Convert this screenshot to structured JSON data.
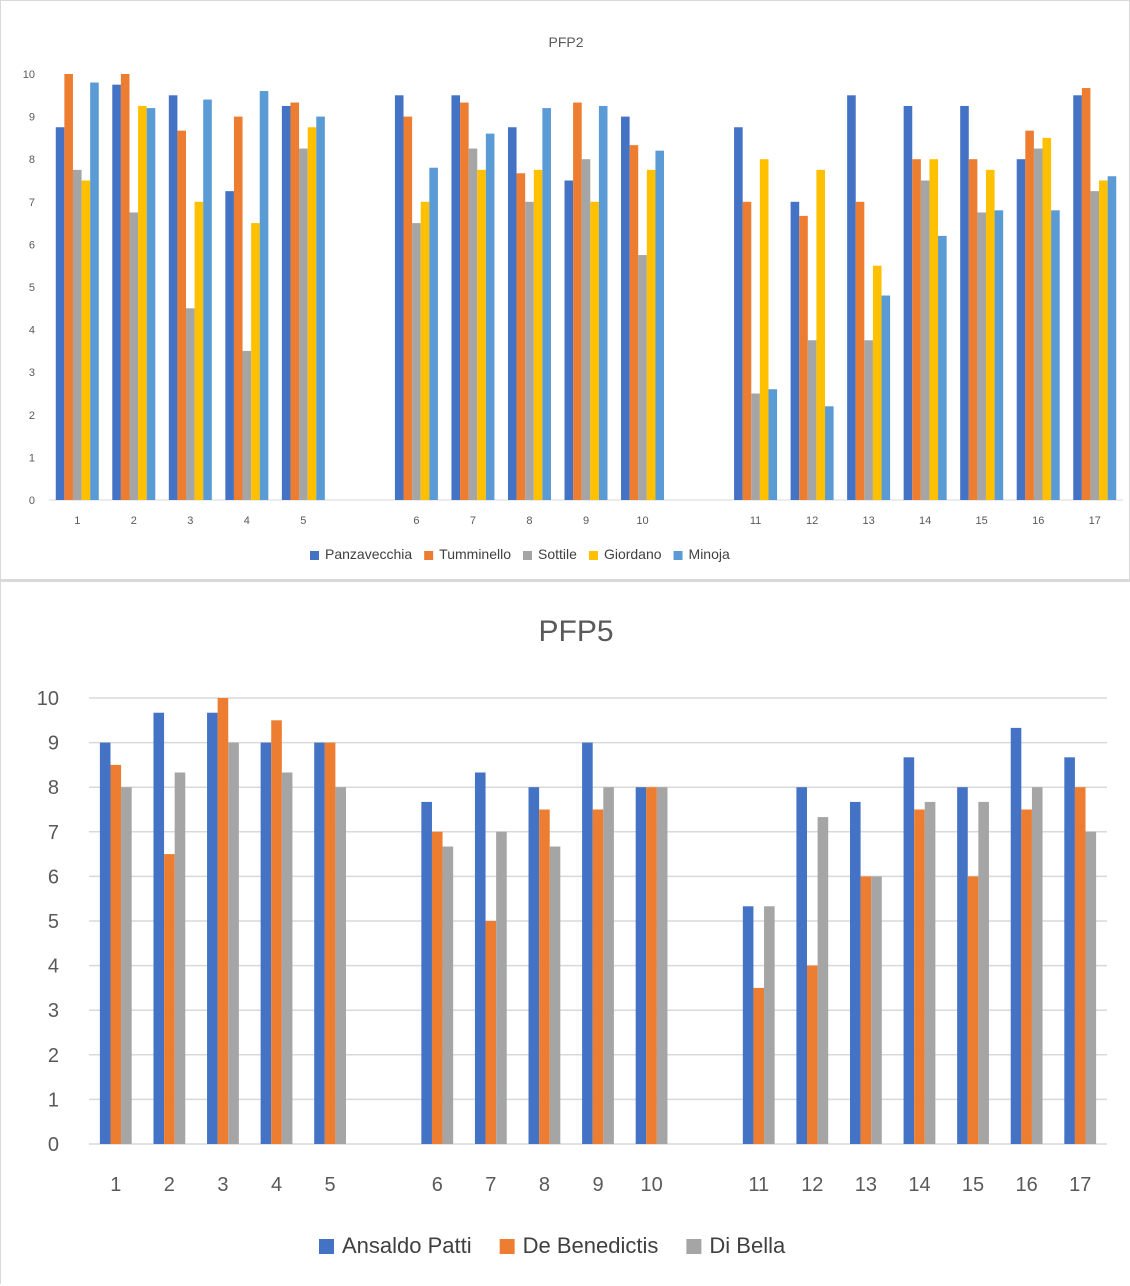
{
  "chart_data": [
    {
      "type": "bar",
      "title": "PFP2",
      "ylim": [
        0,
        10
      ],
      "yticks": [
        0,
        1,
        2,
        3,
        4,
        5,
        6,
        7,
        8,
        9,
        10
      ],
      "grid": false,
      "legend_position": "bottom",
      "categories": [
        "1",
        "2",
        "3",
        "4",
        "5",
        "",
        "6",
        "7",
        "8",
        "9",
        "10",
        "",
        "11",
        "12",
        "13",
        "14",
        "15",
        "16",
        "17"
      ],
      "series": [
        {
          "name": "Panzavecchia",
          "color": "#4472c4",
          "values": [
            8.75,
            9.75,
            9.5,
            7.25,
            9.25,
            null,
            9.5,
            9.5,
            8.75,
            7.5,
            9.0,
            null,
            8.75,
            7.0,
            9.5,
            9.25,
            9.25,
            8.0,
            9.5
          ]
        },
        {
          "name": "Tumminello",
          "color": "#ed7d31",
          "values": [
            10.0,
            10.0,
            8.67,
            9.0,
            9.33,
            null,
            9.0,
            9.33,
            7.67,
            9.33,
            8.33,
            null,
            7.0,
            6.67,
            7.0,
            8.0,
            8.0,
            8.67,
            9.67
          ]
        },
        {
          "name": "Sottile",
          "color": "#a5a5a5",
          "values": [
            7.75,
            6.75,
            4.5,
            3.5,
            8.25,
            null,
            6.5,
            8.25,
            7.0,
            8.0,
            5.75,
            null,
            2.5,
            3.75,
            3.75,
            7.5,
            6.75,
            8.25,
            7.25
          ]
        },
        {
          "name": "Giordano",
          "color": "#ffc000",
          "values": [
            7.5,
            9.25,
            7.0,
            6.5,
            8.75,
            null,
            7.0,
            7.75,
            7.75,
            7.0,
            7.75,
            null,
            8.0,
            7.75,
            5.5,
            8.0,
            7.75,
            8.5,
            7.5
          ]
        },
        {
          "name": "Minoja",
          "color": "#5b9bd5",
          "values": [
            9.8,
            9.2,
            9.4,
            9.6,
            9.0,
            null,
            7.8,
            8.6,
            9.2,
            9.25,
            8.2,
            null,
            2.6,
            2.2,
            4.8,
            6.2,
            6.8,
            6.8,
            7.6
          ]
        }
      ]
    },
    {
      "type": "bar",
      "title": "PFP5",
      "ylim": [
        0,
        10
      ],
      "yticks": [
        0,
        1,
        2,
        3,
        4,
        5,
        6,
        7,
        8,
        9,
        10
      ],
      "grid": true,
      "legend_position": "bottom",
      "categories": [
        "1",
        "2",
        "3",
        "4",
        "5",
        "",
        "6",
        "7",
        "8",
        "9",
        "10",
        "",
        "11",
        "12",
        "13",
        "14",
        "15",
        "16",
        "17"
      ],
      "series": [
        {
          "name": "Ansaldo Patti",
          "color": "#4472c4",
          "values": [
            9.0,
            9.67,
            9.67,
            9.0,
            9.0,
            null,
            7.67,
            8.33,
            8.0,
            9.0,
            8.0,
            null,
            5.33,
            8.0,
            7.67,
            8.67,
            8.0,
            9.33,
            8.67
          ]
        },
        {
          "name": "De Benedictis",
          "color": "#ed7d31",
          "values": [
            8.5,
            6.5,
            10.0,
            9.5,
            9.0,
            null,
            7.0,
            5.0,
            7.5,
            7.5,
            8.0,
            null,
            3.5,
            4.0,
            6.0,
            7.5,
            6.0,
            7.5,
            8.0
          ]
        },
        {
          "name": "Di Bella",
          "color": "#a5a5a5",
          "values": [
            8.0,
            8.33,
            9.0,
            8.33,
            8.0,
            null,
            6.67,
            7.0,
            6.67,
            8.0,
            8.0,
            null,
            5.33,
            7.33,
            6.0,
            7.67,
            7.67,
            8.0,
            7.0
          ]
        }
      ]
    }
  ]
}
